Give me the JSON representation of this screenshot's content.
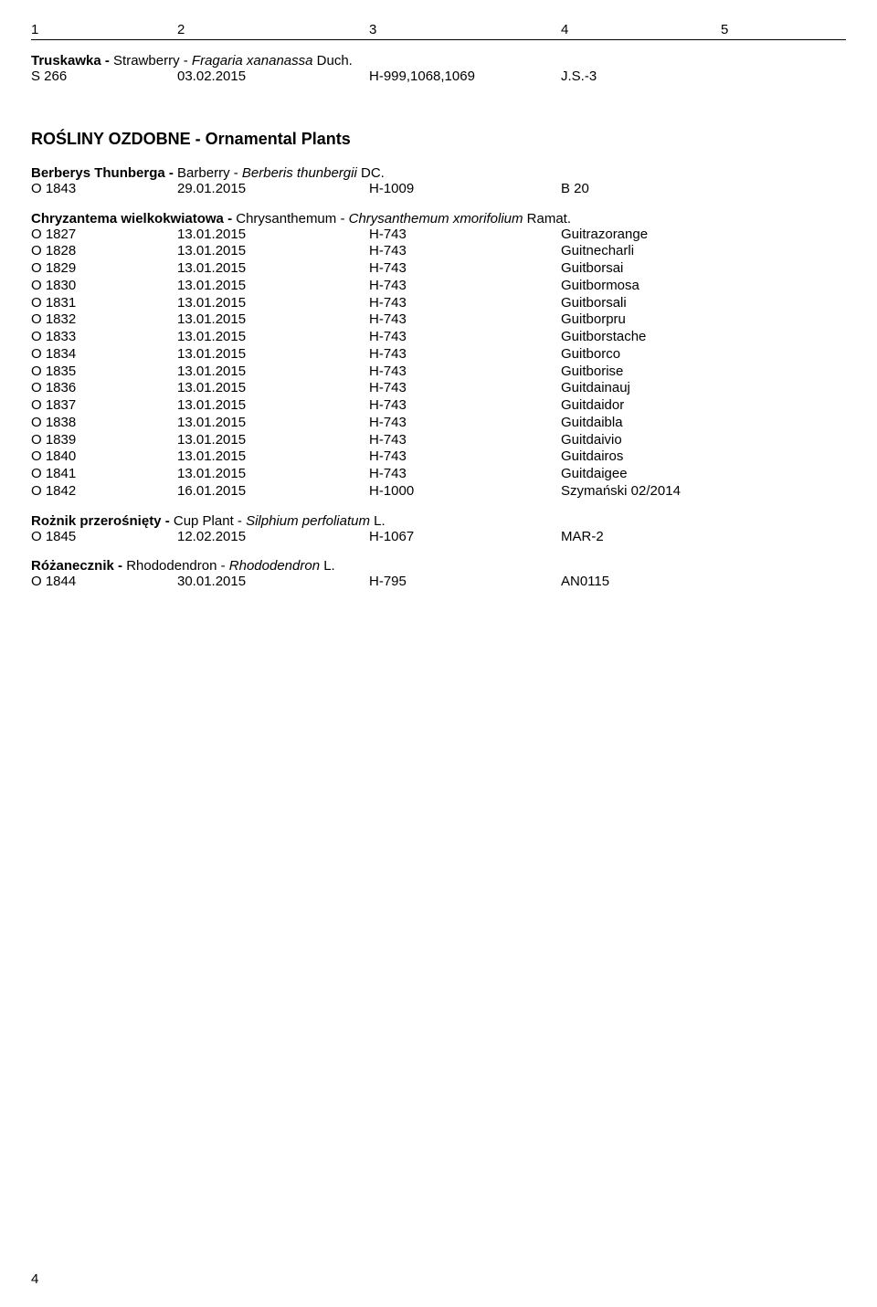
{
  "header": {
    "c1": "1",
    "c2": "2",
    "c3": "3",
    "c4": "4",
    "c5": "5"
  },
  "truskawka": {
    "title_bold": "Truskawka - ",
    "title_normal": "Strawberry - ",
    "title_italic": "Fragaria xananassa ",
    "title_after": "Duch.",
    "row": {
      "c1": "S 266",
      "c2": "03.02.2015",
      "c3": "H-999,1068,1069",
      "c4": "J.S.-3"
    }
  },
  "ornamental_heading": "ROŚLINY OZDOBNE - Ornamental Plants",
  "berberys": {
    "title_bold": "Berberys Thunberga - ",
    "title_normal": "Barberry - ",
    "title_italic": "Berberis thunbergii ",
    "title_after": "DC.",
    "row": {
      "c1": "O 1843",
      "c2": "29.01.2015",
      "c3": "H-1009",
      "c4": "B 20"
    }
  },
  "chryzantema": {
    "title_bold": "Chryzantema wielkokwiatowa - ",
    "title_normal": "Chrysanthemum - ",
    "title_italic": "Chrysanthemum xmorifolium ",
    "title_after": "Ramat.",
    "rows": [
      {
        "c1": "O 1827",
        "c2": "13.01.2015",
        "c3": "H-743",
        "c4": "Guitrazorange"
      },
      {
        "c1": "O 1828",
        "c2": "13.01.2015",
        "c3": "H-743",
        "c4": "Guitnecharli"
      },
      {
        "c1": "O 1829",
        "c2": "13.01.2015",
        "c3": "H-743",
        "c4": "Guitborsai"
      },
      {
        "c1": "O 1830",
        "c2": "13.01.2015",
        "c3": "H-743",
        "c4": "Guitbormosa"
      },
      {
        "c1": "O 1831",
        "c2": "13.01.2015",
        "c3": "H-743",
        "c4": "Guitborsali"
      },
      {
        "c1": "O 1832",
        "c2": "13.01.2015",
        "c3": "H-743",
        "c4": "Guitborpru"
      },
      {
        "c1": "O 1833",
        "c2": "13.01.2015",
        "c3": "H-743",
        "c4": "Guitborstache"
      },
      {
        "c1": "O 1834",
        "c2": "13.01.2015",
        "c3": "H-743",
        "c4": "Guitborco"
      },
      {
        "c1": "O 1835",
        "c2": "13.01.2015",
        "c3": "H-743",
        "c4": "Guitborise"
      },
      {
        "c1": "O 1836",
        "c2": "13.01.2015",
        "c3": "H-743",
        "c4": "Guitdainauj"
      },
      {
        "c1": "O 1837",
        "c2": "13.01.2015",
        "c3": "H-743",
        "c4": "Guitdaidor"
      },
      {
        "c1": "O 1838",
        "c2": "13.01.2015",
        "c3": "H-743",
        "c4": "Guitdaibla"
      },
      {
        "c1": "O 1839",
        "c2": "13.01.2015",
        "c3": "H-743",
        "c4": "Guitdaivio"
      },
      {
        "c1": "O 1840",
        "c2": "13.01.2015",
        "c3": "H-743",
        "c4": "Guitdairos"
      },
      {
        "c1": "O 1841",
        "c2": "13.01.2015",
        "c3": "H-743",
        "c4": "Guitdaigee"
      },
      {
        "c1": "O 1842",
        "c2": "16.01.2015",
        "c3": "H-1000",
        "c4": "Szymański 02/2014"
      }
    ]
  },
  "roznik": {
    "title_bold": "Rożnik przerośnięty - ",
    "title_normal": "Cup Plant - ",
    "title_italic": "Silphium perfoliatum ",
    "title_after": "L.",
    "row": {
      "c1": "O 1845",
      "c2": "12.02.2015",
      "c3": "H-1067",
      "c4": "MAR-2"
    }
  },
  "rozanecznik": {
    "title_bold": "Różanecznik - ",
    "title_normal": "Rhododendron - ",
    "title_italic": "Rhododendron ",
    "title_after": "L.",
    "row": {
      "c1": "O 1844",
      "c2": "30.01.2015",
      "c3": "H-795",
      "c4": "AN0115"
    }
  },
  "page_number": "4"
}
